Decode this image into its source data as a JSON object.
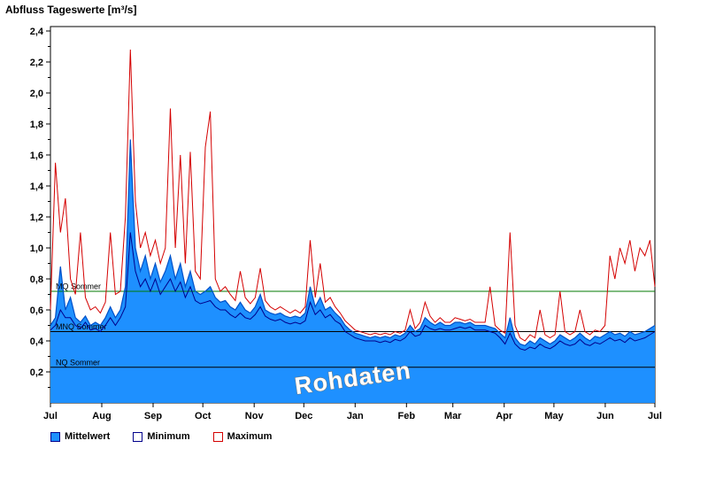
{
  "title": "Abfluss Tageswerte [m³/s]",
  "watermark": "Rohdaten",
  "legend": {
    "items": [
      {
        "label": "Mittelwert",
        "fill": "#1E90FF",
        "border": "#00008B"
      },
      {
        "label": "Minimum",
        "fill": "#FFFFFF",
        "border": "#00008B"
      },
      {
        "label": "Maximum",
        "fill": "#FFFFFF",
        "border": "#D40000"
      }
    ]
  },
  "chart_data": {
    "type": "area",
    "title": "Abfluss Tageswerte [m³/s]",
    "xlabel": "",
    "ylabel": "",
    "x_span": "one year, daily values Jul through Jul",
    "x_tick_labels": [
      "Jul",
      "Aug",
      "Sep",
      "Oct",
      "Nov",
      "Dec",
      "Jan",
      "Feb",
      "Mar",
      "Apr",
      "May",
      "Jun",
      "Jul"
    ],
    "month_start_days": [
      0,
      31,
      62,
      92,
      123,
      153,
      184,
      215,
      243,
      274,
      304,
      335,
      365
    ],
    "ylim": [
      0,
      2.4
    ],
    "y_tick_step": 0.2,
    "y_tick_labels": [
      "0,2",
      "0,4",
      "0,6",
      "0,8",
      "1,0",
      "1,2",
      "1,4",
      "1,6",
      "1,8",
      "2,0",
      "2,2",
      "2,4"
    ],
    "grid": false,
    "legend_position": "bottom",
    "x_step_days": 3,
    "reference_lines": [
      {
        "label": "MQ Sommer",
        "value": 0.72,
        "color": "#007A00"
      },
      {
        "label": "MNQ Sommer",
        "value": 0.46,
        "color": "#000000"
      },
      {
        "label": "NQ Sommer",
        "value": 0.23,
        "color": "#000000"
      }
    ],
    "series": [
      {
        "name": "Mittelwert",
        "type": "area",
        "fill": "#1E90FF",
        "line_color": "#0050C8",
        "values": [
          0.5,
          0.55,
          0.88,
          0.6,
          0.68,
          0.55,
          0.52,
          0.56,
          0.5,
          0.52,
          0.5,
          0.55,
          0.62,
          0.55,
          0.6,
          0.75,
          1.7,
          1.0,
          0.85,
          0.95,
          0.8,
          0.9,
          0.78,
          0.85,
          0.95,
          0.8,
          0.9,
          0.75,
          0.85,
          0.72,
          0.7,
          0.72,
          0.75,
          0.68,
          0.65,
          0.66,
          0.62,
          0.6,
          0.65,
          0.6,
          0.58,
          0.62,
          0.7,
          0.6,
          0.58,
          0.57,
          0.58,
          0.56,
          0.55,
          0.56,
          0.55,
          0.58,
          0.75,
          0.62,
          0.68,
          0.6,
          0.62,
          0.58,
          0.55,
          0.5,
          0.47,
          0.45,
          0.44,
          0.43,
          0.42,
          0.43,
          0.42,
          0.43,
          0.42,
          0.44,
          0.43,
          0.45,
          0.5,
          0.46,
          0.48,
          0.55,
          0.52,
          0.5,
          0.52,
          0.5,
          0.5,
          0.52,
          0.52,
          0.51,
          0.52,
          0.5,
          0.5,
          0.5,
          0.49,
          0.48,
          0.45,
          0.42,
          0.55,
          0.42,
          0.38,
          0.37,
          0.4,
          0.38,
          0.42,
          0.4,
          0.38,
          0.4,
          0.44,
          0.42,
          0.4,
          0.42,
          0.45,
          0.42,
          0.4,
          0.43,
          0.42,
          0.44,
          0.46,
          0.44,
          0.45,
          0.43,
          0.46,
          0.44,
          0.45,
          0.46,
          0.48,
          0.5
        ]
      },
      {
        "name": "Minimum",
        "type": "line",
        "line_color": "#00008B",
        "values": [
          0.47,
          0.5,
          0.6,
          0.55,
          0.55,
          0.5,
          0.48,
          0.52,
          0.47,
          0.48,
          0.46,
          0.5,
          0.55,
          0.5,
          0.55,
          0.62,
          1.1,
          0.85,
          0.75,
          0.8,
          0.72,
          0.8,
          0.7,
          0.75,
          0.8,
          0.72,
          0.78,
          0.68,
          0.75,
          0.66,
          0.64,
          0.65,
          0.66,
          0.62,
          0.6,
          0.6,
          0.57,
          0.55,
          0.58,
          0.55,
          0.54,
          0.57,
          0.62,
          0.56,
          0.54,
          0.53,
          0.54,
          0.52,
          0.51,
          0.52,
          0.51,
          0.53,
          0.65,
          0.57,
          0.6,
          0.55,
          0.57,
          0.53,
          0.51,
          0.46,
          0.44,
          0.42,
          0.41,
          0.4,
          0.4,
          0.4,
          0.39,
          0.4,
          0.39,
          0.41,
          0.4,
          0.42,
          0.46,
          0.43,
          0.44,
          0.5,
          0.48,
          0.47,
          0.48,
          0.47,
          0.47,
          0.48,
          0.49,
          0.48,
          0.49,
          0.47,
          0.47,
          0.47,
          0.46,
          0.45,
          0.42,
          0.38,
          0.45,
          0.38,
          0.35,
          0.34,
          0.36,
          0.35,
          0.38,
          0.36,
          0.35,
          0.37,
          0.4,
          0.38,
          0.37,
          0.38,
          0.41,
          0.38,
          0.37,
          0.39,
          0.38,
          0.4,
          0.42,
          0.4,
          0.41,
          0.39,
          0.42,
          0.4,
          0.41,
          0.42,
          0.44,
          0.46
        ]
      },
      {
        "name": "Maximum",
        "type": "line",
        "line_color": "#D40000",
        "values": [
          0.6,
          1.55,
          1.1,
          1.32,
          0.8,
          0.7,
          1.1,
          0.68,
          0.6,
          0.62,
          0.58,
          0.65,
          1.1,
          0.7,
          0.72,
          1.2,
          2.28,
          1.3,
          1.0,
          1.1,
          0.95,
          1.05,
          0.9,
          1.0,
          1.9,
          1.0,
          1.6,
          0.9,
          1.62,
          0.85,
          0.8,
          1.65,
          1.88,
          0.8,
          0.72,
          0.75,
          0.7,
          0.66,
          0.85,
          0.68,
          0.64,
          0.68,
          0.87,
          0.66,
          0.62,
          0.6,
          0.62,
          0.6,
          0.58,
          0.6,
          0.58,
          0.62,
          1.05,
          0.68,
          0.9,
          0.65,
          0.68,
          0.62,
          0.58,
          0.53,
          0.5,
          0.47,
          0.46,
          0.45,
          0.44,
          0.45,
          0.44,
          0.45,
          0.44,
          0.46,
          0.45,
          0.47,
          0.6,
          0.48,
          0.52,
          0.65,
          0.56,
          0.52,
          0.55,
          0.52,
          0.52,
          0.55,
          0.54,
          0.53,
          0.54,
          0.52,
          0.52,
          0.52,
          0.75,
          0.5,
          0.47,
          0.45,
          1.1,
          0.5,
          0.42,
          0.4,
          0.44,
          0.42,
          0.6,
          0.44,
          0.42,
          0.44,
          0.72,
          0.46,
          0.44,
          0.46,
          0.6,
          0.46,
          0.44,
          0.47,
          0.46,
          0.5,
          0.95,
          0.8,
          1.0,
          0.9,
          1.05,
          0.85,
          1.0,
          0.95,
          1.05,
          0.75
        ]
      }
    ]
  }
}
